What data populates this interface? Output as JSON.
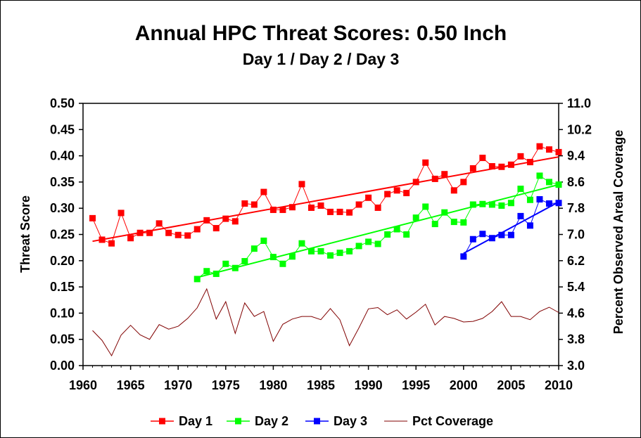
{
  "chart_data": {
    "type": "line",
    "title": "Annual HPC Threat Scores:  0.50 Inch",
    "subtitle": "Day 1 / Day 2 / Day 3",
    "ylabel": "Threat Score",
    "y2label": "Percent Observed Areal Coverage",
    "xlim": [
      1960,
      2010
    ],
    "ylim": [
      0.0,
      0.5
    ],
    "y2lim": [
      3.0,
      11.0
    ],
    "x_ticks": [
      "1960",
      "1965",
      "1970",
      "1975",
      "1980",
      "1985",
      "1990",
      "1995",
      "2000",
      "2005",
      "2010"
    ],
    "y_ticks": [
      "0.00",
      "0.05",
      "0.10",
      "0.15",
      "0.20",
      "0.25",
      "0.30",
      "0.35",
      "0.40",
      "0.45",
      "0.50"
    ],
    "y2_ticks": [
      "3.0",
      "3.8",
      "4.6",
      "5.4",
      "6.2",
      "7.0",
      "7.8",
      "8.6",
      "9.4",
      "10.2",
      "11.0"
    ],
    "legend_position": "bottom",
    "series": [
      {
        "name": "Day 1",
        "color": "#ff0000",
        "axis": "left",
        "marker": "square",
        "x": [
          1961,
          1962,
          1963,
          1964,
          1965,
          1966,
          1967,
          1968,
          1969,
          1970,
          1971,
          1972,
          1973,
          1974,
          1975,
          1976,
          1977,
          1978,
          1979,
          1980,
          1981,
          1982,
          1983,
          1984,
          1985,
          1986,
          1987,
          1988,
          1989,
          1990,
          1991,
          1992,
          1993,
          1994,
          1995,
          1996,
          1997,
          1998,
          1999,
          2000,
          2001,
          2002,
          2003,
          2004,
          2005,
          2006,
          2007,
          2008,
          2009,
          2010
        ],
        "y": [
          0.281,
          0.24,
          0.233,
          0.291,
          0.243,
          0.253,
          0.253,
          0.271,
          0.253,
          0.249,
          0.248,
          0.26,
          0.277,
          0.262,
          0.28,
          0.275,
          0.309,
          0.307,
          0.331,
          0.297,
          0.297,
          0.302,
          0.346,
          0.301,
          0.305,
          0.293,
          0.293,
          0.292,
          0.307,
          0.32,
          0.301,
          0.327,
          0.334,
          0.329,
          0.35,
          0.387,
          0.356,
          0.365,
          0.334,
          0.35,
          0.376,
          0.396,
          0.38,
          0.379,
          0.383,
          0.399,
          0.388,
          0.418,
          0.412,
          0.407
        ],
        "trend": [
          [
            1961,
            0.237
          ],
          [
            2010,
            0.398
          ]
        ]
      },
      {
        "name": "Day 2",
        "color": "#00ff00",
        "axis": "left",
        "marker": "square",
        "x": [
          1972,
          1973,
          1974,
          1975,
          1976,
          1977,
          1978,
          1979,
          1980,
          1981,
          1982,
          1983,
          1984,
          1985,
          1986,
          1987,
          1988,
          1989,
          1990,
          1991,
          1992,
          1993,
          1994,
          1995,
          1996,
          1997,
          1998,
          1999,
          2000,
          2001,
          2002,
          2003,
          2004,
          2005,
          2006,
          2007,
          2008,
          2009,
          2010
        ],
        "y": [
          0.165,
          0.18,
          0.175,
          0.194,
          0.186,
          0.199,
          0.223,
          0.238,
          0.207,
          0.194,
          0.208,
          0.233,
          0.218,
          0.218,
          0.21,
          0.215,
          0.218,
          0.228,
          0.236,
          0.232,
          0.25,
          0.26,
          0.25,
          0.282,
          0.303,
          0.27,
          0.292,
          0.274,
          0.273,
          0.307,
          0.308,
          0.307,
          0.305,
          0.31,
          0.337,
          0.316,
          0.362,
          0.35,
          0.345
        ],
        "trend": [
          [
            1972,
            0.168
          ],
          [
            2010,
            0.345
          ]
        ]
      },
      {
        "name": "Day 3",
        "color": "#0000ff",
        "axis": "left",
        "marker": "square",
        "x": [
          2000,
          2001,
          2002,
          2003,
          2004,
          2005,
          2006,
          2007,
          2008,
          2009,
          2010
        ],
        "y": [
          0.208,
          0.241,
          0.251,
          0.243,
          0.249,
          0.249,
          0.285,
          0.267,
          0.317,
          0.309,
          0.31
        ],
        "trend": [
          [
            2000,
            0.214
          ],
          [
            2010,
            0.312
          ]
        ]
      },
      {
        "name": "Pct Coverage",
        "color": "#800000",
        "axis": "right",
        "marker": "none",
        "x": [
          1961,
          1962,
          1963,
          1964,
          1965,
          1966,
          1967,
          1968,
          1969,
          1970,
          1971,
          1972,
          1973,
          1974,
          1975,
          1976,
          1977,
          1978,
          1979,
          1980,
          1981,
          1982,
          1983,
          1984,
          1985,
          1986,
          1987,
          1988,
          1989,
          1990,
          1991,
          1992,
          1993,
          1994,
          1995,
          1996,
          1997,
          1998,
          1999,
          2000,
          2001,
          2002,
          2003,
          2004,
          2005,
          2006,
          2007,
          2008,
          2009,
          2010
        ],
        "y": [
          4.07,
          3.77,
          3.3,
          3.93,
          4.23,
          3.94,
          3.8,
          4.25,
          4.11,
          4.2,
          4.44,
          4.76,
          5.34,
          4.42,
          4.95,
          3.98,
          4.91,
          4.5,
          4.65,
          3.74,
          4.26,
          4.42,
          4.5,
          4.5,
          4.4,
          4.74,
          4.4,
          3.61,
          4.15,
          4.73,
          4.77,
          4.55,
          4.7,
          4.42,
          4.63,
          4.87,
          4.24,
          4.5,
          4.44,
          4.33,
          4.35,
          4.44,
          4.65,
          4.95,
          4.5,
          4.5,
          4.4,
          4.65,
          4.78,
          4.62
        ]
      }
    ]
  }
}
